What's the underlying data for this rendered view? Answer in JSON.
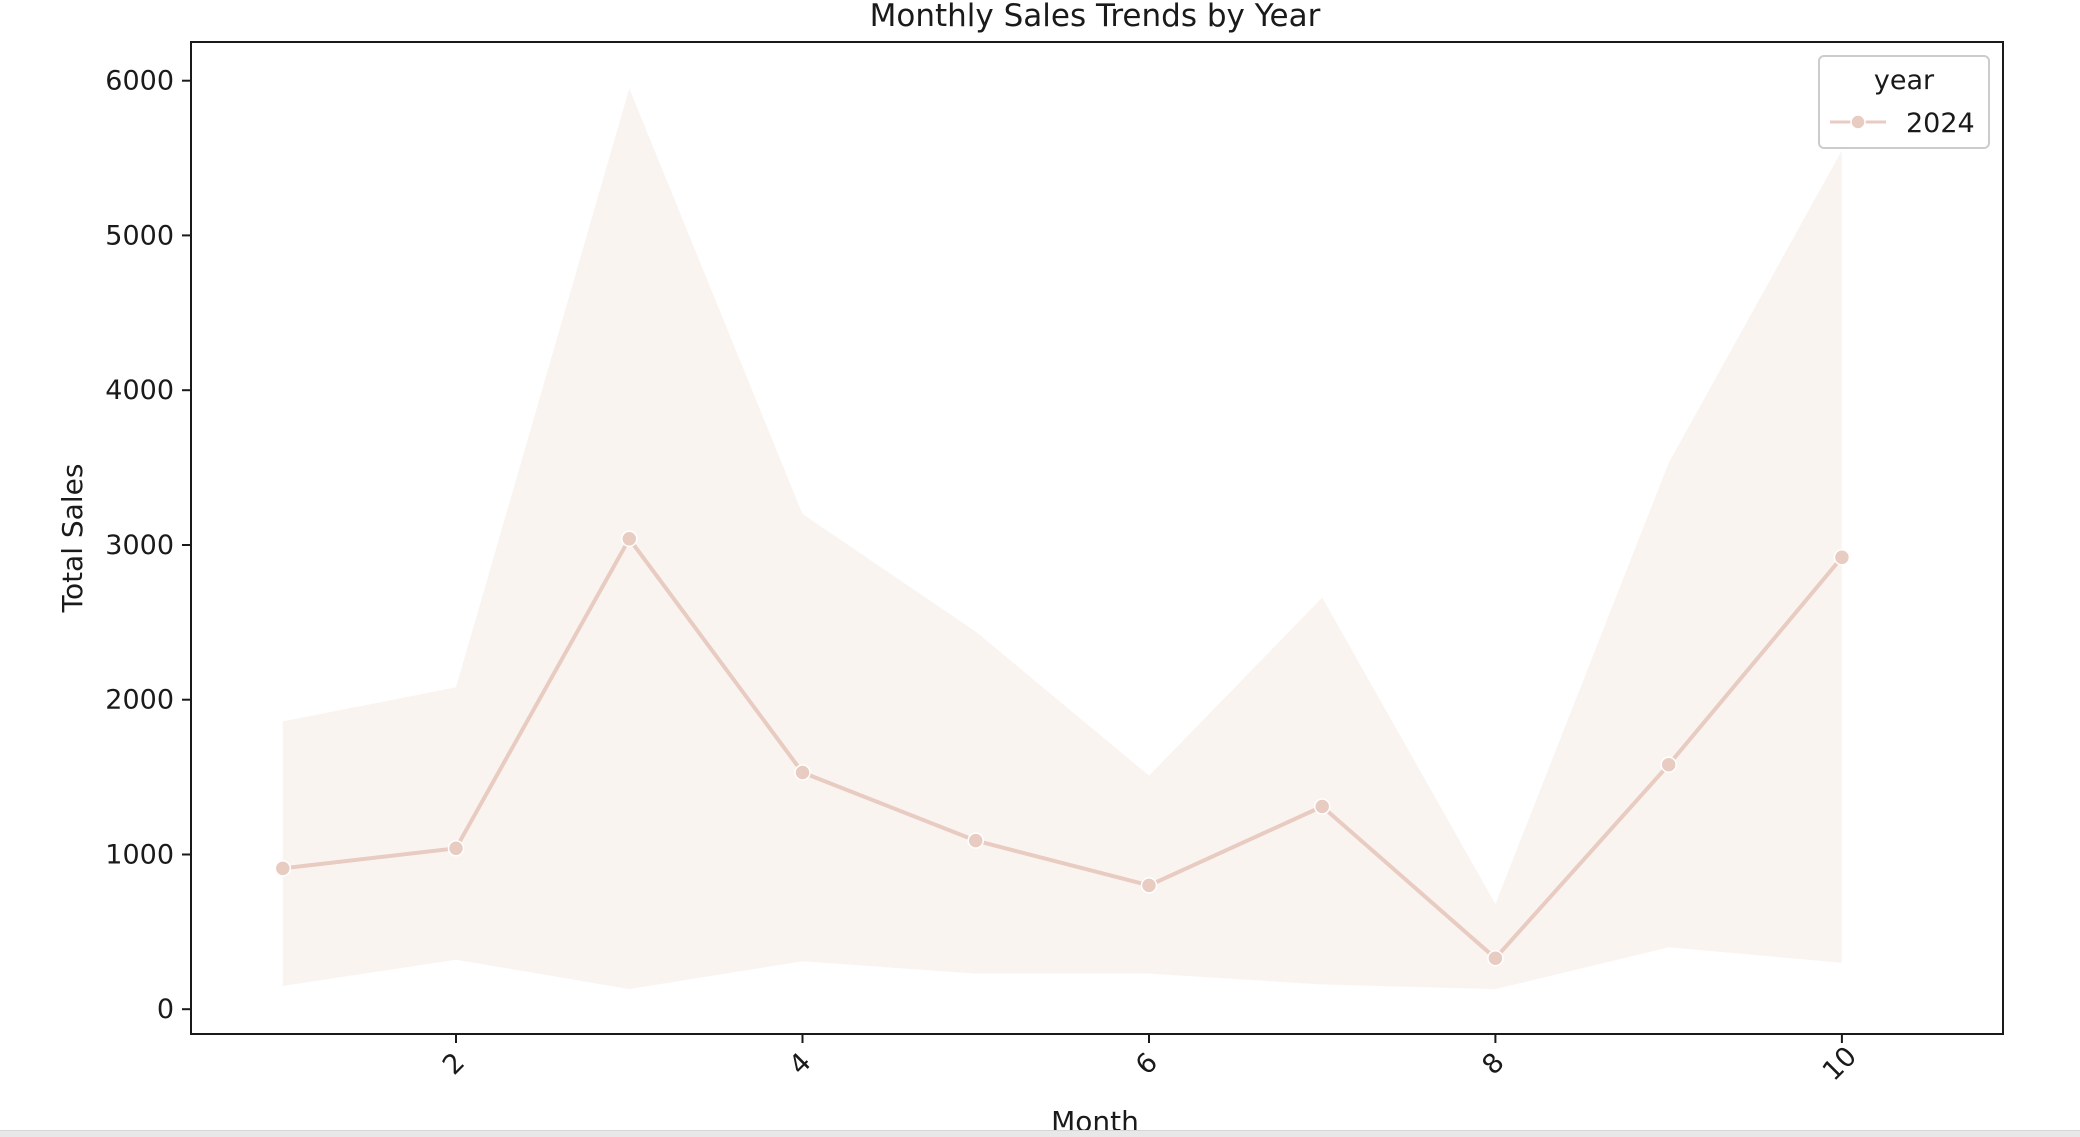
{
  "chart_data": {
    "type": "line",
    "title": "Monthly Sales Trends by Year",
    "xlabel": "Month",
    "ylabel": "Total Sales",
    "x": [
      1,
      2,
      3,
      4,
      5,
      6,
      7,
      8,
      9,
      10
    ],
    "xticks": [
      2,
      4,
      6,
      8,
      10
    ],
    "yticks": [
      0,
      1000,
      2000,
      3000,
      4000,
      5000,
      6000
    ],
    "xlim": [
      0.47,
      10.93
    ],
    "ylim": [
      -160,
      6250
    ],
    "grid": false,
    "legend": {
      "title": "year",
      "placement": "top-right"
    },
    "series": [
      {
        "name": "2024",
        "color": "#e8cbc1",
        "values": [
          910,
          1040,
          3040,
          1530,
          1090,
          800,
          1310,
          330,
          1580,
          2920
        ],
        "ci_low": [
          150,
          320,
          130,
          310,
          230,
          230,
          160,
          130,
          400,
          300
        ],
        "ci_high": [
          1860,
          2080,
          5950,
          3200,
          2440,
          1510,
          2660,
          680,
          3530,
          5550
        ]
      }
    ]
  }
}
